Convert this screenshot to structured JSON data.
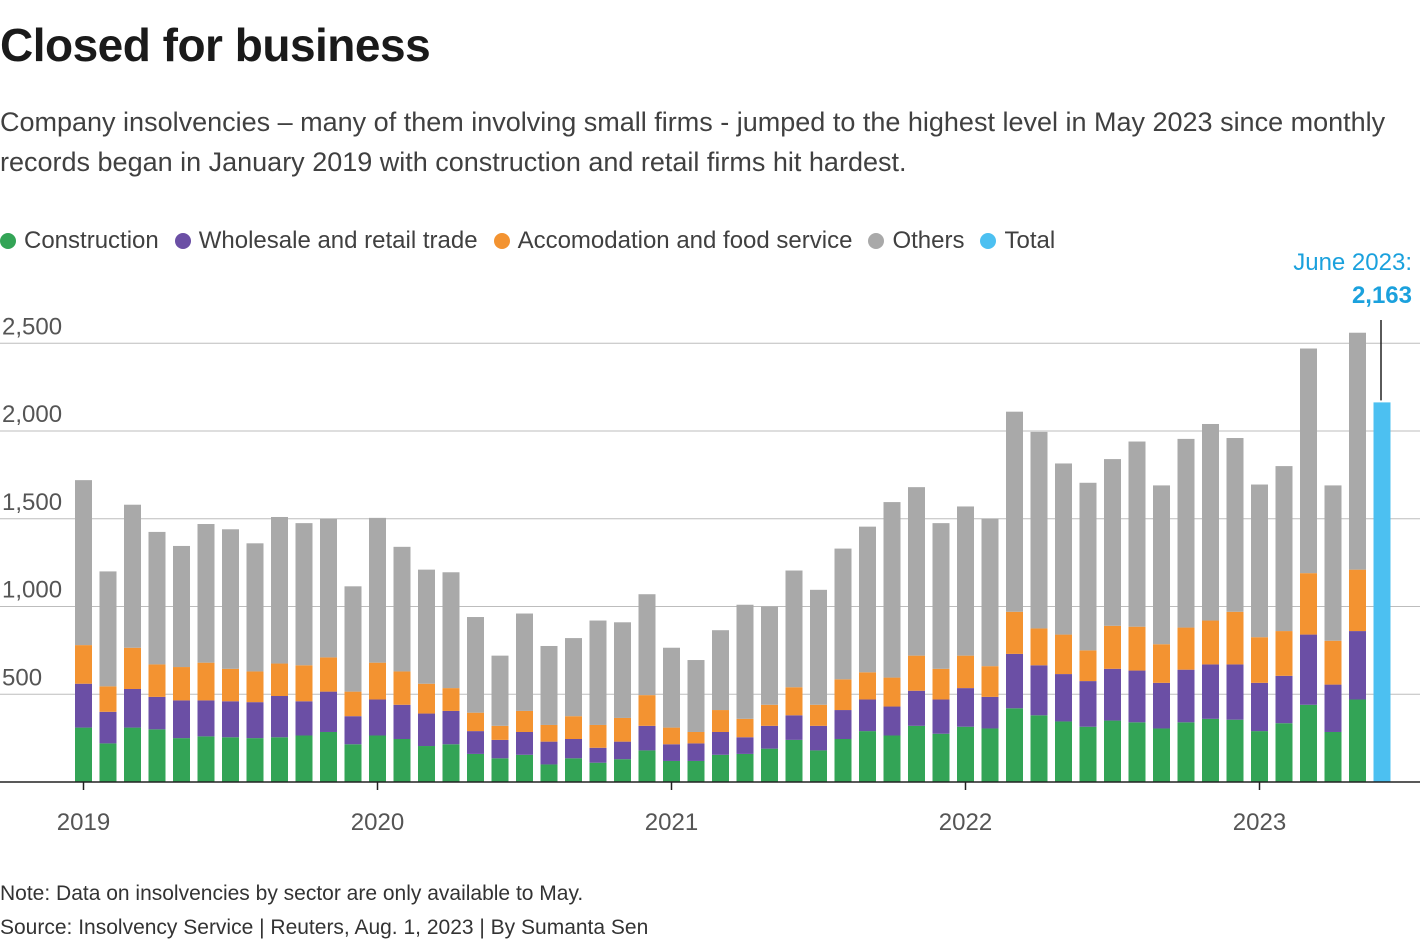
{
  "title": "Closed for business",
  "subtitle": "Company insolvencies – many of them involving small firms - jumped to the highest level in May 2023 since monthly records began in January 2019 with construction and retail firms hit hardest.",
  "legend": [
    {
      "label": "Construction",
      "color": "#33a456"
    },
    {
      "label": "Wholesale and retail trade",
      "color": "#6b4fa5"
    },
    {
      "label": "Accomodation and food service",
      "color": "#f39331"
    },
    {
      "label": "Others",
      "color": "#a9a9a9"
    },
    {
      "label": "Total",
      "color": "#4cc0f1"
    }
  ],
  "annotation": {
    "label": "June 2023:",
    "value": "2,163",
    "color": "#1ba1dd"
  },
  "note": "Note: Data on insolvencies by sector are only available to May.",
  "source": "Source: Insolvency Service | Reuters, Aug. 1, 2023 | By Sumanta Sen",
  "chart_data": {
    "type": "bar",
    "stacked": true,
    "title": "Closed for business",
    "xlabel": "",
    "ylabel": "",
    "ylim": [
      0,
      2500
    ],
    "yticks": [
      500,
      1000,
      1500,
      2000,
      2500
    ],
    "ytick_labels": [
      "500",
      "1,000",
      "1,500",
      "2,000",
      "2,500"
    ],
    "xtick_labels": [
      "2019",
      "2020",
      "2021",
      "2022",
      "2023"
    ],
    "xtick_index": [
      0,
      12,
      24,
      36,
      48
    ],
    "categories": [
      "Jan 2019",
      "Feb 2019",
      "Mar 2019",
      "Apr 2019",
      "May 2019",
      "Jun 2019",
      "Jul 2019",
      "Aug 2019",
      "Sep 2019",
      "Oct 2019",
      "Nov 2019",
      "Dec 2019",
      "Jan 2020",
      "Feb 2020",
      "Mar 2020",
      "Apr 2020",
      "May 2020",
      "Jun 2020",
      "Jul 2020",
      "Aug 2020",
      "Sep 2020",
      "Oct 2020",
      "Nov 2020",
      "Dec 2020",
      "Jan 2021",
      "Feb 2021",
      "Mar 2021",
      "Apr 2021",
      "May 2021",
      "Jun 2021",
      "Jul 2021",
      "Aug 2021",
      "Sep 2021",
      "Oct 2021",
      "Nov 2021",
      "Dec 2021",
      "Jan 2022",
      "Feb 2022",
      "Mar 2022",
      "Apr 2022",
      "May 2022",
      "Jun 2022",
      "Jul 2022",
      "Aug 2022",
      "Sep 2022",
      "Oct 2022",
      "Nov 2022",
      "Dec 2022",
      "Jan 2023",
      "Feb 2023",
      "Mar 2023",
      "Apr 2023",
      "May 2023",
      "Jun 2023"
    ],
    "series": [
      {
        "name": "Construction",
        "color": "#33a456",
        "values": [
          310,
          220,
          310,
          300,
          250,
          260,
          255,
          250,
          255,
          265,
          285,
          215,
          265,
          245,
          205,
          215,
          160,
          135,
          155,
          100,
          135,
          110,
          130,
          180,
          120,
          120,
          155,
          160,
          190,
          240,
          180,
          245,
          290,
          265,
          320,
          275,
          315,
          305,
          420,
          380,
          345,
          315,
          350,
          340,
          305,
          340,
          360,
          355,
          290,
          335,
          440,
          285,
          470,
          null
        ]
      },
      {
        "name": "Wholesale and retail trade",
        "color": "#6b4fa5",
        "values": [
          250,
          180,
          220,
          185,
          215,
          205,
          205,
          205,
          235,
          195,
          230,
          160,
          205,
          195,
          185,
          190,
          130,
          105,
          130,
          130,
          110,
          85,
          100,
          140,
          95,
          100,
          130,
          95,
          130,
          140,
          140,
          165,
          180,
          165,
          200,
          195,
          220,
          180,
          310,
          285,
          270,
          260,
          295,
          295,
          260,
          300,
          310,
          315,
          275,
          270,
          400,
          270,
          390,
          null
        ]
      },
      {
        "name": "Accomodation and food service",
        "color": "#f39331",
        "values": [
          220,
          145,
          235,
          185,
          190,
          215,
          185,
          175,
          185,
          205,
          195,
          140,
          210,
          190,
          170,
          130,
          105,
          80,
          120,
          95,
          130,
          130,
          135,
          175,
          95,
          65,
          125,
          105,
          120,
          160,
          120,
          175,
          155,
          165,
          200,
          175,
          185,
          175,
          240,
          210,
          225,
          175,
          245,
          250,
          220,
          240,
          250,
          300,
          260,
          255,
          350,
          250,
          350,
          null
        ]
      },
      {
        "name": "Others",
        "color": "#a9a9a9",
        "values": [
          940,
          655,
          815,
          755,
          690,
          790,
          795,
          730,
          835,
          810,
          790,
          600,
          825,
          710,
          650,
          660,
          545,
          400,
          555,
          450,
          445,
          595,
          545,
          575,
          455,
          410,
          455,
          650,
          560,
          665,
          655,
          745,
          830,
          1000,
          960,
          830,
          850,
          840,
          1140,
          1120,
          975,
          955,
          950,
          1055,
          905,
          1075,
          1120,
          990,
          870,
          940,
          1280,
          885,
          1350,
          null
        ]
      },
      {
        "name": "Total",
        "color": "#4cc0f1",
        "values": [
          null,
          null,
          null,
          null,
          null,
          null,
          null,
          null,
          null,
          null,
          null,
          null,
          null,
          null,
          null,
          null,
          null,
          null,
          null,
          null,
          null,
          null,
          null,
          null,
          null,
          null,
          null,
          null,
          null,
          null,
          null,
          null,
          null,
          null,
          null,
          null,
          null,
          null,
          null,
          null,
          null,
          null,
          null,
          null,
          null,
          null,
          null,
          null,
          null,
          null,
          null,
          null,
          null,
          2163
        ]
      }
    ]
  }
}
